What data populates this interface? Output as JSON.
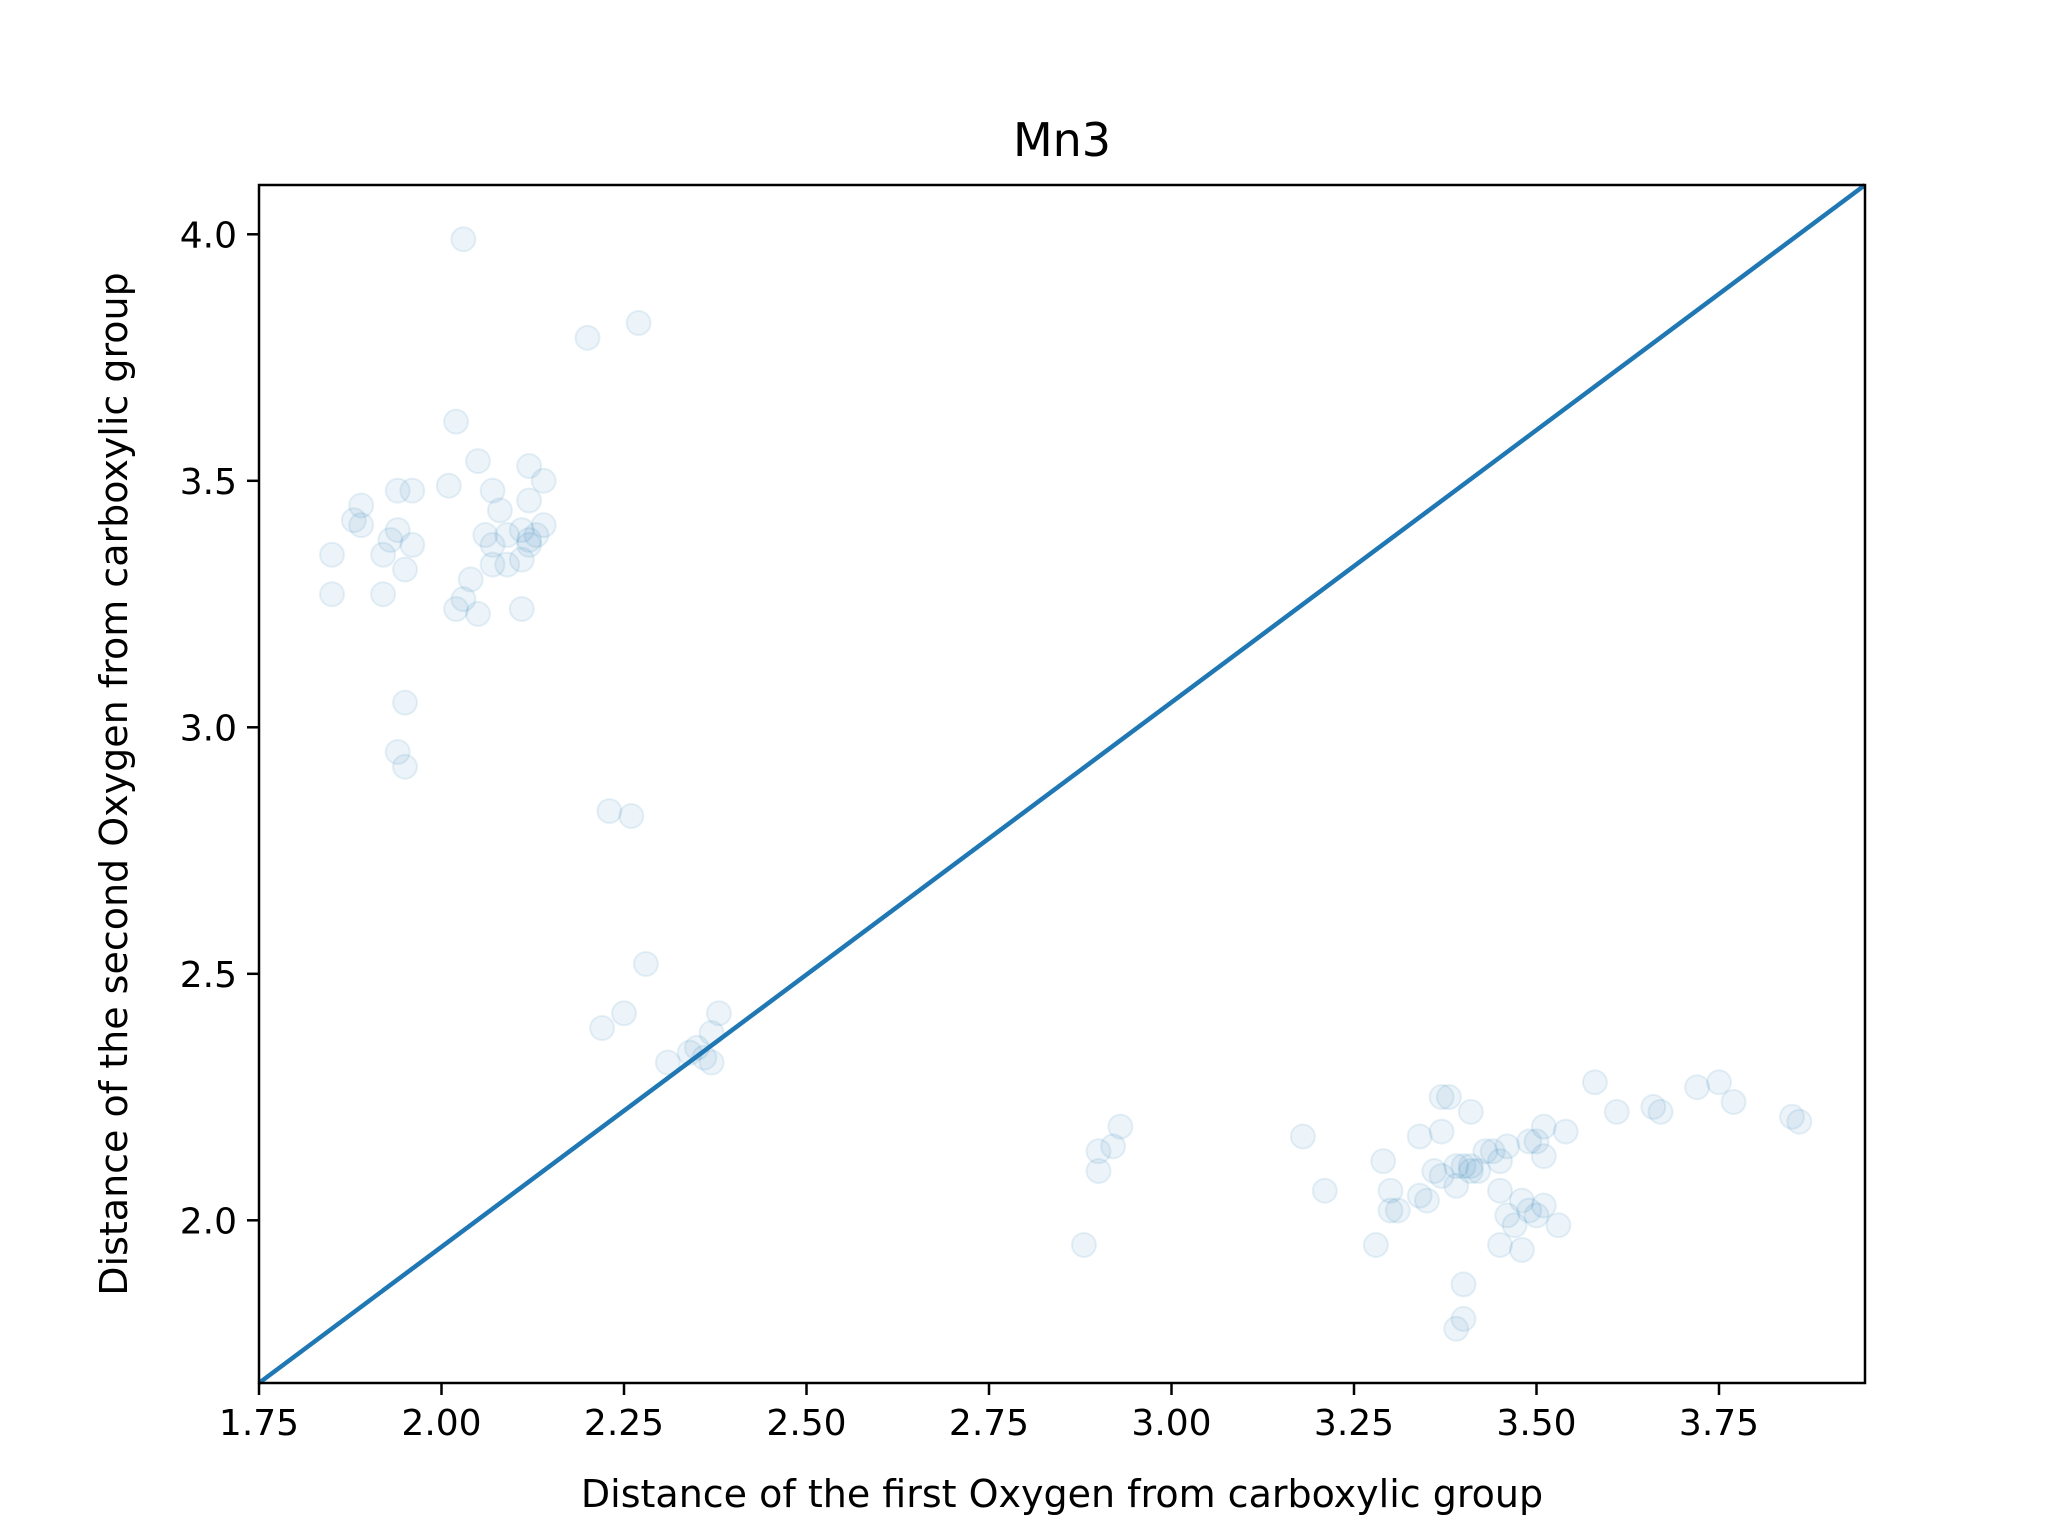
{
  "chart_data": {
    "type": "scatter",
    "title": "Mn3",
    "xlabel": "Distance of the first Oxygen from carboxylic group",
    "ylabel": "Distance of the second Oxygen from carboxylic group",
    "xlim": [
      1.75,
      3.95
    ],
    "ylim": [
      1.67,
      4.1
    ],
    "xticks": [
      "1.75",
      "2.00",
      "2.25",
      "2.50",
      "2.75",
      "3.00",
      "3.25",
      "3.50",
      "3.75"
    ],
    "yticks": [
      "2.0",
      "2.5",
      "3.0",
      "3.5",
      "4.0"
    ],
    "grid": false,
    "colors": {
      "points": "#1f77b4",
      "line": "#1f77b4"
    },
    "point_alpha": 0.08,
    "reference_line": {
      "x": [
        1.75,
        3.95
      ],
      "y": [
        1.67,
        4.1
      ]
    },
    "points": [
      {
        "x": 2.03,
        "y": 3.99
      },
      {
        "x": 2.27,
        "y": 3.82
      },
      {
        "x": 2.2,
        "y": 3.79
      },
      {
        "x": 2.02,
        "y": 3.62
      },
      {
        "x": 2.05,
        "y": 3.54
      },
      {
        "x": 2.12,
        "y": 3.53
      },
      {
        "x": 2.14,
        "y": 3.5
      },
      {
        "x": 2.01,
        "y": 3.49
      },
      {
        "x": 1.94,
        "y": 3.48
      },
      {
        "x": 1.96,
        "y": 3.48
      },
      {
        "x": 2.07,
        "y": 3.48
      },
      {
        "x": 2.12,
        "y": 3.46
      },
      {
        "x": 1.89,
        "y": 3.45
      },
      {
        "x": 2.08,
        "y": 3.44
      },
      {
        "x": 1.88,
        "y": 3.42
      },
      {
        "x": 1.89,
        "y": 3.41
      },
      {
        "x": 2.14,
        "y": 3.41
      },
      {
        "x": 2.11,
        "y": 3.4
      },
      {
        "x": 1.94,
        "y": 3.4
      },
      {
        "x": 2.13,
        "y": 3.39
      },
      {
        "x": 2.06,
        "y": 3.39
      },
      {
        "x": 2.09,
        "y": 3.39
      },
      {
        "x": 1.93,
        "y": 3.38
      },
      {
        "x": 2.12,
        "y": 3.38
      },
      {
        "x": 2.12,
        "y": 3.37
      },
      {
        "x": 1.96,
        "y": 3.37
      },
      {
        "x": 2.07,
        "y": 3.37
      },
      {
        "x": 1.85,
        "y": 3.35
      },
      {
        "x": 1.92,
        "y": 3.35
      },
      {
        "x": 2.07,
        "y": 3.33
      },
      {
        "x": 2.09,
        "y": 3.33
      },
      {
        "x": 2.11,
        "y": 3.34
      },
      {
        "x": 1.95,
        "y": 3.32
      },
      {
        "x": 2.04,
        "y": 3.3
      },
      {
        "x": 1.92,
        "y": 3.27
      },
      {
        "x": 1.85,
        "y": 3.27
      },
      {
        "x": 2.03,
        "y": 3.26
      },
      {
        "x": 2.02,
        "y": 3.24
      },
      {
        "x": 2.11,
        "y": 3.24
      },
      {
        "x": 2.05,
        "y": 3.23
      },
      {
        "x": 1.95,
        "y": 3.05
      },
      {
        "x": 1.94,
        "y": 2.95
      },
      {
        "x": 1.95,
        "y": 2.92
      },
      {
        "x": 2.23,
        "y": 2.83
      },
      {
        "x": 2.26,
        "y": 2.82
      },
      {
        "x": 2.28,
        "y": 2.52
      },
      {
        "x": 2.38,
        "y": 2.42
      },
      {
        "x": 2.25,
        "y": 2.42
      },
      {
        "x": 2.22,
        "y": 2.39
      },
      {
        "x": 2.37,
        "y": 2.38
      },
      {
        "x": 2.35,
        "y": 2.35
      },
      {
        "x": 2.34,
        "y": 2.34
      },
      {
        "x": 2.36,
        "y": 2.33
      },
      {
        "x": 2.31,
        "y": 2.32
      },
      {
        "x": 2.37,
        "y": 2.32
      },
      {
        "x": 2.88,
        "y": 1.95
      },
      {
        "x": 2.9,
        "y": 2.1
      },
      {
        "x": 2.9,
        "y": 2.14
      },
      {
        "x": 2.92,
        "y": 2.15
      },
      {
        "x": 2.93,
        "y": 2.19
      },
      {
        "x": 3.18,
        "y": 2.17
      },
      {
        "x": 3.21,
        "y": 2.06
      },
      {
        "x": 3.28,
        "y": 1.95
      },
      {
        "x": 3.29,
        "y": 2.12
      },
      {
        "x": 3.3,
        "y": 2.06
      },
      {
        "x": 3.3,
        "y": 2.02
      },
      {
        "x": 3.31,
        "y": 2.02
      },
      {
        "x": 3.34,
        "y": 2.05
      },
      {
        "x": 3.35,
        "y": 2.04
      },
      {
        "x": 3.34,
        "y": 2.17
      },
      {
        "x": 3.36,
        "y": 2.1
      },
      {
        "x": 3.37,
        "y": 2.09
      },
      {
        "x": 3.37,
        "y": 2.18
      },
      {
        "x": 3.38,
        "y": 2.25
      },
      {
        "x": 3.37,
        "y": 2.25
      },
      {
        "x": 3.39,
        "y": 2.07
      },
      {
        "x": 3.39,
        "y": 2.11
      },
      {
        "x": 3.4,
        "y": 2.11
      },
      {
        "x": 3.41,
        "y": 2.11
      },
      {
        "x": 3.41,
        "y": 2.1
      },
      {
        "x": 3.42,
        "y": 2.1
      },
      {
        "x": 3.41,
        "y": 2.22
      },
      {
        "x": 3.43,
        "y": 2.14
      },
      {
        "x": 3.44,
        "y": 2.14
      },
      {
        "x": 3.45,
        "y": 2.12
      },
      {
        "x": 3.45,
        "y": 2.06
      },
      {
        "x": 3.46,
        "y": 2.15
      },
      {
        "x": 3.46,
        "y": 2.01
      },
      {
        "x": 3.47,
        "y": 1.99
      },
      {
        "x": 3.48,
        "y": 2.04
      },
      {
        "x": 3.48,
        "y": 1.94
      },
      {
        "x": 3.49,
        "y": 2.02
      },
      {
        "x": 3.49,
        "y": 2.16
      },
      {
        "x": 3.5,
        "y": 2.01
      },
      {
        "x": 3.5,
        "y": 2.16
      },
      {
        "x": 3.51,
        "y": 2.13
      },
      {
        "x": 3.51,
        "y": 2.03
      },
      {
        "x": 3.51,
        "y": 2.19
      },
      {
        "x": 3.53,
        "y": 1.99
      },
      {
        "x": 3.54,
        "y": 2.18
      },
      {
        "x": 3.45,
        "y": 1.95
      },
      {
        "x": 3.4,
        "y": 1.87
      },
      {
        "x": 3.4,
        "y": 1.8
      },
      {
        "x": 3.39,
        "y": 1.78
      },
      {
        "x": 3.58,
        "y": 2.28
      },
      {
        "x": 3.61,
        "y": 2.22
      },
      {
        "x": 3.66,
        "y": 2.23
      },
      {
        "x": 3.67,
        "y": 2.22
      },
      {
        "x": 3.72,
        "y": 2.27
      },
      {
        "x": 3.75,
        "y": 2.28
      },
      {
        "x": 3.77,
        "y": 2.24
      },
      {
        "x": 3.85,
        "y": 2.21
      },
      {
        "x": 3.86,
        "y": 2.2
      }
    ]
  }
}
